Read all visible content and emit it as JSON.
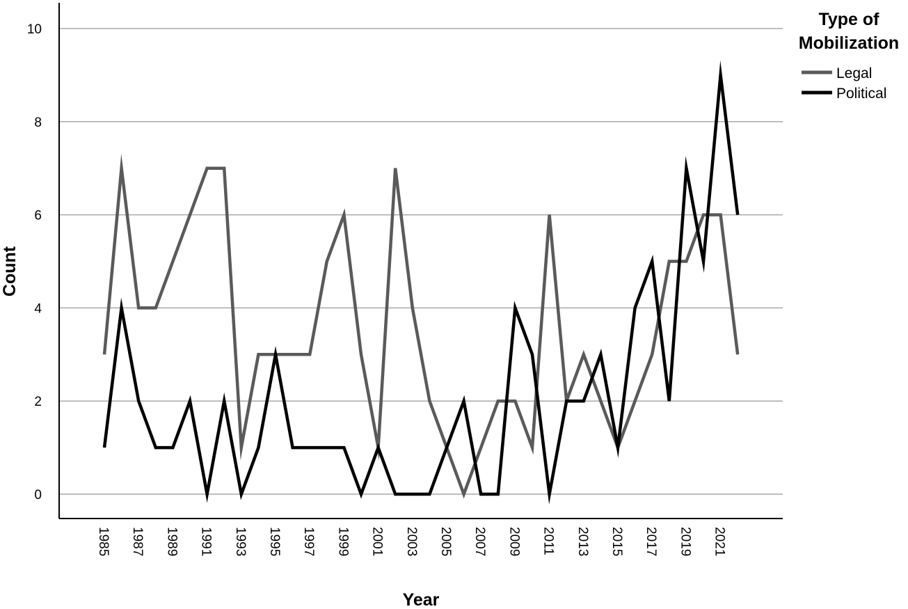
{
  "chart_data": {
    "type": "line",
    "title": "",
    "xlabel": "Year",
    "ylabel": "Count",
    "x": [
      1985,
      1986,
      1987,
      1988,
      1989,
      1990,
      1991,
      1992,
      1993,
      1994,
      1995,
      1996,
      1997,
      1998,
      1999,
      2000,
      2001,
      2002,
      2003,
      2004,
      2005,
      2006,
      2007,
      2008,
      2009,
      2010,
      2011,
      2012,
      2013,
      2014,
      2015,
      2016,
      2017,
      2018,
      2019,
      2020,
      2021,
      2022
    ],
    "x_tick_labels": [
      "1985",
      "1987",
      "1989",
      "1991",
      "1993",
      "1995",
      "1997",
      "1999",
      "2001",
      "2003",
      "2005",
      "2007",
      "2009",
      "2011",
      "2013",
      "2015",
      "2017",
      "2019",
      "2021"
    ],
    "ylim": [
      0,
      10
    ],
    "y_ticks": [
      0,
      2,
      4,
      6,
      8,
      10
    ],
    "grid": "horizontal",
    "legend": {
      "title": "Type of Mobilization",
      "title_lines": [
        "Type of",
        "Mobilization"
      ],
      "position": "top-right"
    },
    "series": [
      {
        "name": "Legal",
        "color": "#5a5a5a",
        "values": [
          3,
          7,
          4,
          4,
          5,
          6,
          7,
          7,
          1,
          3,
          3,
          3,
          3,
          5,
          6,
          3,
          1,
          7,
          4,
          2,
          1,
          0,
          1,
          2,
          2,
          1,
          6,
          2,
          3,
          2,
          1,
          2,
          3,
          5,
          5,
          6,
          6,
          3
        ]
      },
      {
        "name": "Political",
        "color": "#000000",
        "values": [
          1,
          4,
          2,
          1,
          1,
          2,
          0,
          2,
          0,
          1,
          3,
          1,
          1,
          1,
          1,
          0,
          1,
          0,
          0,
          0,
          1,
          2,
          0,
          0,
          4,
          3,
          0,
          2,
          2,
          3,
          1,
          4,
          5,
          2,
          7,
          5,
          9,
          6
        ]
      }
    ]
  }
}
